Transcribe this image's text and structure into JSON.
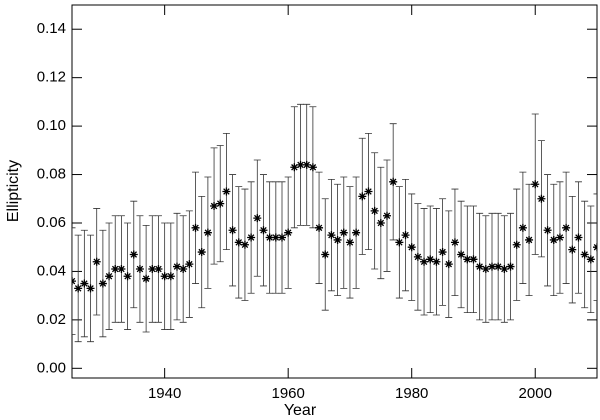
{
  "chart_data": {
    "type": "scatter",
    "x_label": "Year",
    "y_label": "Ellipticity",
    "x": [
      1925,
      1926,
      1927,
      1928,
      1929,
      1930,
      1931,
      1932,
      1933,
      1934,
      1935,
      1936,
      1937,
      1938,
      1939,
      1940,
      1941,
      1942,
      1943,
      1944,
      1945,
      1946,
      1947,
      1948,
      1949,
      1950,
      1951,
      1952,
      1953,
      1954,
      1955,
      1956,
      1957,
      1958,
      1959,
      1960,
      1961,
      1962,
      1963,
      1964,
      1965,
      1966,
      1967,
      1968,
      1969,
      1970,
      1971,
      1972,
      1973,
      1974,
      1975,
      1976,
      1977,
      1978,
      1979,
      1980,
      1981,
      1982,
      1983,
      1984,
      1985,
      1986,
      1987,
      1988,
      1989,
      1990,
      1991,
      1992,
      1993,
      1994,
      1995,
      1996,
      1997,
      1998,
      1999,
      2000,
      2001,
      2002,
      2003,
      2004,
      2005,
      2006,
      2007,
      2008,
      2009,
      2010
    ],
    "values": [
      0.036,
      0.033,
      0.035,
      0.033,
      0.044,
      0.035,
      0.038,
      0.041,
      0.041,
      0.038,
      0.047,
      0.041,
      0.037,
      0.041,
      0.041,
      0.038,
      0.038,
      0.042,
      0.041,
      0.043,
      0.058,
      0.048,
      0.056,
      0.067,
      0.068,
      0.073,
      0.057,
      0.052,
      0.051,
      0.054,
      0.062,
      0.057,
      0.054,
      0.054,
      0.054,
      0.056,
      0.083,
      0.084,
      0.084,
      0.083,
      0.058,
      0.047,
      0.055,
      0.053,
      0.056,
      0.052,
      0.056,
      0.071,
      0.073,
      0.065,
      0.06,
      0.063,
      0.077,
      0.052,
      0.055,
      0.05,
      0.046,
      0.044,
      0.045,
      0.044,
      0.048,
      0.043,
      0.052,
      0.047,
      0.045,
      0.045,
      0.042,
      0.041,
      0.042,
      0.042,
      0.041,
      0.042,
      0.051,
      0.058,
      0.053,
      0.076,
      0.07,
      0.057,
      0.053,
      0.054,
      0.058,
      0.049,
      0.054,
      0.047,
      0.045,
      0.05
    ],
    "errors": [
      0.022,
      0.022,
      0.022,
      0.022,
      0.022,
      0.022,
      0.022,
      0.022,
      0.022,
      0.022,
      0.022,
      0.022,
      0.022,
      0.022,
      0.022,
      0.022,
      0.022,
      0.022,
      0.022,
      0.022,
      0.023,
      0.023,
      0.023,
      0.024,
      0.024,
      0.024,
      0.023,
      0.023,
      0.023,
      0.023,
      0.024,
      0.023,
      0.023,
      0.023,
      0.023,
      0.023,
      0.025,
      0.025,
      0.025,
      0.025,
      0.023,
      0.023,
      0.023,
      0.023,
      0.023,
      0.023,
      0.023,
      0.024,
      0.024,
      0.024,
      0.023,
      0.023,
      0.024,
      0.023,
      0.023,
      0.022,
      0.022,
      0.022,
      0.022,
      0.022,
      0.022,
      0.022,
      0.022,
      0.022,
      0.022,
      0.022,
      0.022,
      0.022,
      0.022,
      0.022,
      0.022,
      0.022,
      0.023,
      0.023,
      0.023,
      0.029,
      0.024,
      0.023,
      0.023,
      0.023,
      0.023,
      0.022,
      0.023,
      0.022,
      0.022,
      0.022
    ],
    "color": "#000000",
    "xlim": [
      1925,
      2010
    ],
    "ylim": [
      -0.004,
      0.15
    ],
    "xticks": [
      1940,
      1960,
      1980,
      2000
    ],
    "yticks": [
      {
        "value": 0,
        "label": "0.00"
      },
      {
        "value": 0.02,
        "label": "0.02"
      },
      {
        "value": 0.04,
        "label": "0.04"
      },
      {
        "value": 0.06,
        "label": "0.06"
      },
      {
        "value": 0.08,
        "label": "0.08"
      },
      {
        "value": 0.1,
        "label": "0.10"
      },
      {
        "value": 0.12,
        "label": "0.12"
      },
      {
        "value": 0.14,
        "label": "0.14"
      }
    ]
  }
}
